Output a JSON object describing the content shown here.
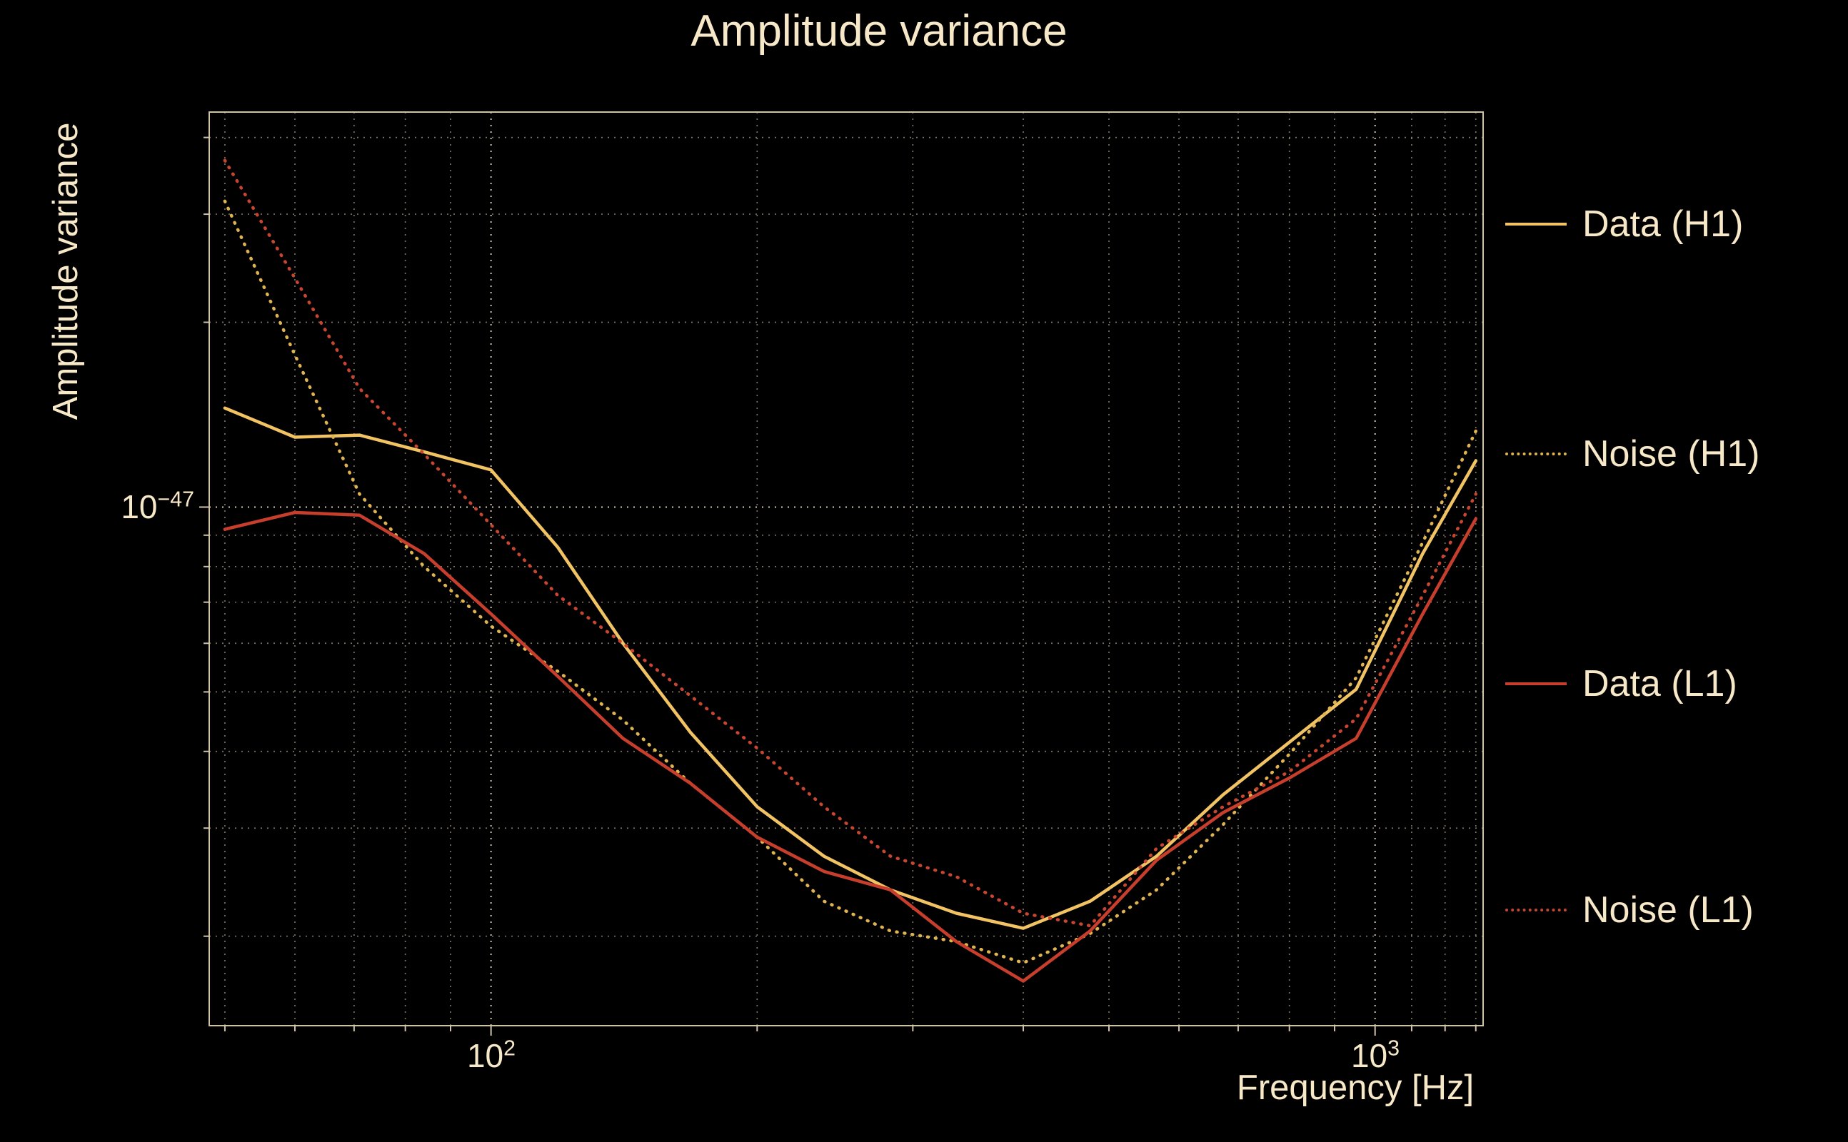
{
  "title": "Amplitude variance",
  "axes": {
    "ylabel": "Amplitude variance",
    "xlabel": "Frequency [Hz]",
    "x_ticks": [
      {
        "base": "10",
        "exp": "2"
      },
      {
        "base": "10",
        "exp": "3"
      }
    ],
    "y_ticks": [
      {
        "base": "10",
        "exp": "−47"
      }
    ]
  },
  "colors": {
    "background": "#000000",
    "text": "#f7e8c8",
    "grid": "rgba(248,232,202,0.5)",
    "grid_major": "rgba(248,232,202,0.85)",
    "spine": "#cfc2a6",
    "h1_gold": "#f2c363",
    "l1_red": "#c73e2c"
  },
  "legend": {
    "position": "right",
    "entries": [
      {
        "label": "Data (H1)"
      },
      {
        "label": "Noise (H1)"
      },
      {
        "label": "Data (L1)"
      },
      {
        "label": "Noise (L1)"
      }
    ]
  },
  "chart_data": {
    "type": "line",
    "title": "Amplitude variance",
    "xlabel": "Frequency [Hz]",
    "ylabel": "Amplitude variance",
    "xscale": "log",
    "yscale": "log",
    "xlim": [
      48,
      1325
    ],
    "ylim": [
      1.43e-48,
      4.4e-47
    ],
    "grid": true,
    "legend_position": "right",
    "x_gridlines": [
      50,
      60,
      70,
      80,
      90,
      100,
      200,
      300,
      400,
      500,
      600,
      700,
      800,
      900,
      1000,
      1100,
      1200,
      1300
    ],
    "x_major": [
      100,
      1000
    ],
    "y_gridlines": [
      2e-48,
      3e-48,
      4e-48,
      5e-48,
      6e-48,
      7e-48,
      8e-48,
      9e-48,
      1e-47,
      2e-47,
      3e-47,
      4e-47
    ],
    "y_major": [
      1e-47
    ],
    "x": [
      50,
      60,
      71,
      84,
      100,
      119,
      141,
      168,
      200,
      238,
      283,
      336,
      400,
      476,
      566,
      673,
      800,
      952,
      1132,
      1300
    ],
    "series": [
      {
        "name": "Data (H1)",
        "style": "solid",
        "color": "#f2c363",
        "values": [
          1.45e-47,
          1.3e-47,
          1.31e-47,
          1.23e-47,
          1.15e-47,
          8.6e-48,
          6e-48,
          4.3e-48,
          3.25e-48,
          2.7e-48,
          2.38e-48,
          2.18e-48,
          2.06e-48,
          2.28e-48,
          2.7e-48,
          3.4e-48,
          4.14e-48,
          5.05e-48,
          8.4e-48,
          1.19e-47
        ]
      },
      {
        "name": "Noise (H1)",
        "style": "dotted",
        "color": "#dfb44f",
        "values": [
          3.15e-47,
          1.77e-47,
          1.05e-47,
          8e-48,
          6.4e-48,
          5.4e-48,
          4.5e-48,
          3.55e-48,
          2.9e-48,
          2.28e-48,
          2.04e-48,
          1.96e-48,
          1.81e-48,
          2.02e-48,
          2.38e-48,
          3.04e-48,
          3.96e-48,
          5.27e-48,
          8.76e-48,
          1.33e-47
        ]
      },
      {
        "name": "Data (L1)",
        "style": "solid",
        "color": "#c73e2c",
        "values": [
          9.2e-48,
          9.8e-48,
          9.7e-48,
          8.4e-48,
          6.7e-48,
          5.3e-48,
          4.2e-48,
          3.55e-48,
          2.9e-48,
          2.55e-48,
          2.38e-48,
          1.96e-48,
          1.69e-48,
          2.04e-48,
          2.66e-48,
          3.18e-48,
          3.62e-48,
          4.2e-48,
          6.7e-48,
          9.57e-48
        ]
      },
      {
        "name": "Noise (L1)",
        "style": "dotted",
        "color": "#c9452f",
        "values": [
          3.67e-47,
          2.36e-47,
          1.56e-47,
          1.22e-47,
          9.36e-48,
          7.18e-48,
          6e-48,
          4.93e-48,
          4.05e-48,
          3.25e-48,
          2.7e-48,
          2.5e-48,
          2.18e-48,
          2.08e-48,
          2.78e-48,
          3.25e-48,
          3.71e-48,
          4.52e-48,
          7.18e-48,
          1.05e-47
        ]
      }
    ]
  }
}
